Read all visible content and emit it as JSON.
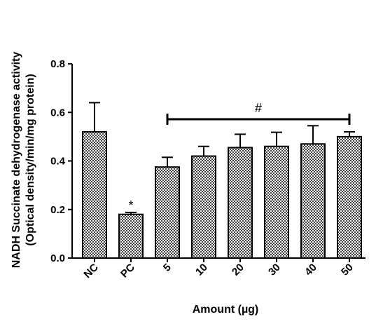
{
  "chart_data": {
    "type": "bar",
    "categories": [
      "NC",
      "PC",
      "5",
      "10",
      "20",
      "30",
      "40",
      "50"
    ],
    "values": [
      0.52,
      0.18,
      0.375,
      0.42,
      0.455,
      0.46,
      0.47,
      0.5
    ],
    "errors": [
      0.12,
      0.008,
      0.04,
      0.04,
      0.055,
      0.058,
      0.075,
      0.02
    ],
    "xlabel": "Amount (µg)",
    "ylabel_line1": "NADH Succinate dehydrogenase activity",
    "ylabel_line2": "(Optical density/min/mg protein)",
    "ylim": [
      0,
      0.8
    ],
    "yticks": [
      "0.0",
      "0.2",
      "0.4",
      "0.6",
      "0.8"
    ],
    "ytick_values": [
      0,
      0.2,
      0.4,
      0.6,
      0.8
    ],
    "annotations": [
      {
        "text": "*",
        "category": "PC"
      },
      {
        "text": "#",
        "span": [
          "5",
          "50"
        ]
      }
    ],
    "bar_pattern": "checkered",
    "grid": false,
    "legend": "none"
  }
}
